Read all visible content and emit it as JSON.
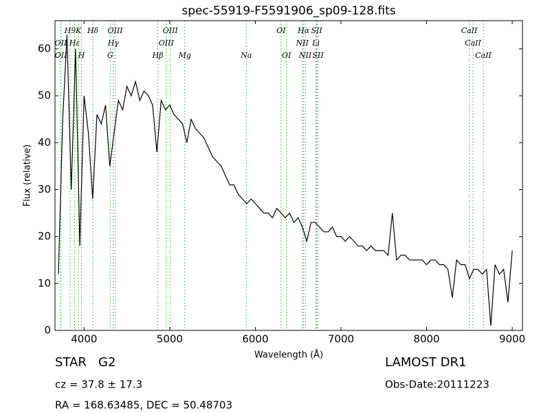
{
  "chart_data": {
    "type": "line",
    "title": "spec-55919-F5591906_sp09-128.fits",
    "x_label": "Wavelength (Å)",
    "y_label": "Flux (relative)",
    "color": "#000000",
    "line_color": "#2ca02c",
    "xlim": [
      3660,
      9120
    ],
    "ylim": [
      0,
      66
    ],
    "xticks": [
      4000,
      5000,
      6000,
      7000,
      8000,
      9000
    ],
    "yticks": [
      0,
      10,
      20,
      30,
      40,
      50,
      60
    ],
    "x": [
      3700,
      3750,
      3800,
      3850,
      3900,
      3950,
      4000,
      4050,
      4100,
      4150,
      4200,
      4250,
      4300,
      4350,
      4400,
      4450,
      4500,
      4550,
      4600,
      4650,
      4700,
      4750,
      4800,
      4850,
      4900,
      4950,
      5000,
      5050,
      5100,
      5150,
      5200,
      5250,
      5300,
      5350,
      5400,
      5450,
      5500,
      5550,
      5600,
      5650,
      5700,
      5750,
      5800,
      5850,
      5900,
      5950,
      6000,
      6050,
      6100,
      6150,
      6200,
      6250,
      6300,
      6350,
      6400,
      6450,
      6500,
      6550,
      6600,
      6650,
      6700,
      6750,
      6800,
      6850,
      6900,
      6950,
      7000,
      7050,
      7100,
      7150,
      7200,
      7250,
      7300,
      7350,
      7400,
      7450,
      7500,
      7550,
      7600,
      7650,
      7700,
      7750,
      7800,
      7850,
      7900,
      7950,
      8000,
      8050,
      8100,
      8150,
      8200,
      8250,
      8300,
      8350,
      8400,
      8450,
      8500,
      8550,
      8600,
      8650,
      8700,
      8750,
      8800,
      8850,
      8900,
      8950,
      9000
    ],
    "values": [
      12,
      45,
      63,
      30,
      60,
      18,
      50,
      42,
      28,
      46,
      44,
      48,
      35,
      42,
      49,
      47,
      52,
      50,
      53,
      49,
      51,
      50,
      48,
      38,
      49,
      47,
      48,
      46,
      45,
      44,
      40,
      45,
      43,
      42,
      41,
      39,
      37,
      36,
      35,
      33,
      31,
      31,
      29,
      28,
      27,
      28,
      27,
      26,
      25,
      25,
      24,
      26,
      25,
      24,
      25,
      23,
      24,
      22,
      19,
      23,
      23,
      22,
      21,
      21,
      22,
      20,
      20,
      19,
      20,
      19,
      18,
      18,
      17,
      18,
      17,
      17,
      17,
      16,
      25,
      15,
      16,
      16,
      15,
      15,
      15,
      15,
      14,
      15,
      15,
      14,
      14,
      13,
      7,
      15,
      14,
      14,
      11,
      13,
      13,
      12,
      13,
      1,
      14,
      12,
      13,
      6,
      17
    ],
    "annotations": [
      {
        "label": "H9",
        "x": 3836
      },
      {
        "label": "K",
        "x": 3934
      },
      {
        "label": "Hδ",
        "x": 4102
      },
      {
        "label": "OIII",
        "x": 4363
      },
      {
        "label": "OIII",
        "x": 5007
      },
      {
        "label": "OI",
        "x": 6300
      },
      {
        "label": "Hα",
        "x": 6563
      },
      {
        "label": "SII",
        "x": 6716
      },
      {
        "label": "CaII",
        "x": 8498
      },
      {
        "label": "OII",
        "x": 3727
      },
      {
        "label": "Hε",
        "x": 3889
      },
      {
        "label": "Hγ",
        "x": 4341
      },
      {
        "label": "OIII",
        "x": 4959
      },
      {
        "label": "NII",
        "x": 6548
      },
      {
        "label": "Li",
        "x": 6707
      },
      {
        "label": "CaII",
        "x": 8542
      },
      {
        "label": "OII",
        "x": 3729
      },
      {
        "label": "H",
        "x": 3969
      },
      {
        "label": "G",
        "x": 4305
      },
      {
        "label": "Hβ",
        "x": 4861
      },
      {
        "label": "Mg",
        "x": 5176
      },
      {
        "label": "Na",
        "x": 5894
      },
      {
        "label": "OI",
        "x": 6363
      },
      {
        "label": "NII",
        "x": 6583
      },
      {
        "label": "SII",
        "x": 6731
      },
      {
        "label": "CaII",
        "x": 8662
      }
    ],
    "footer": {
      "object": "STAR   G2",
      "cz": "cz = 37.8 ± 17.3",
      "coords": "RA = 168.63485, DEC = 50.48703",
      "survey": "LAMOST DR1",
      "date": "Obs-Date:20111223"
    }
  }
}
